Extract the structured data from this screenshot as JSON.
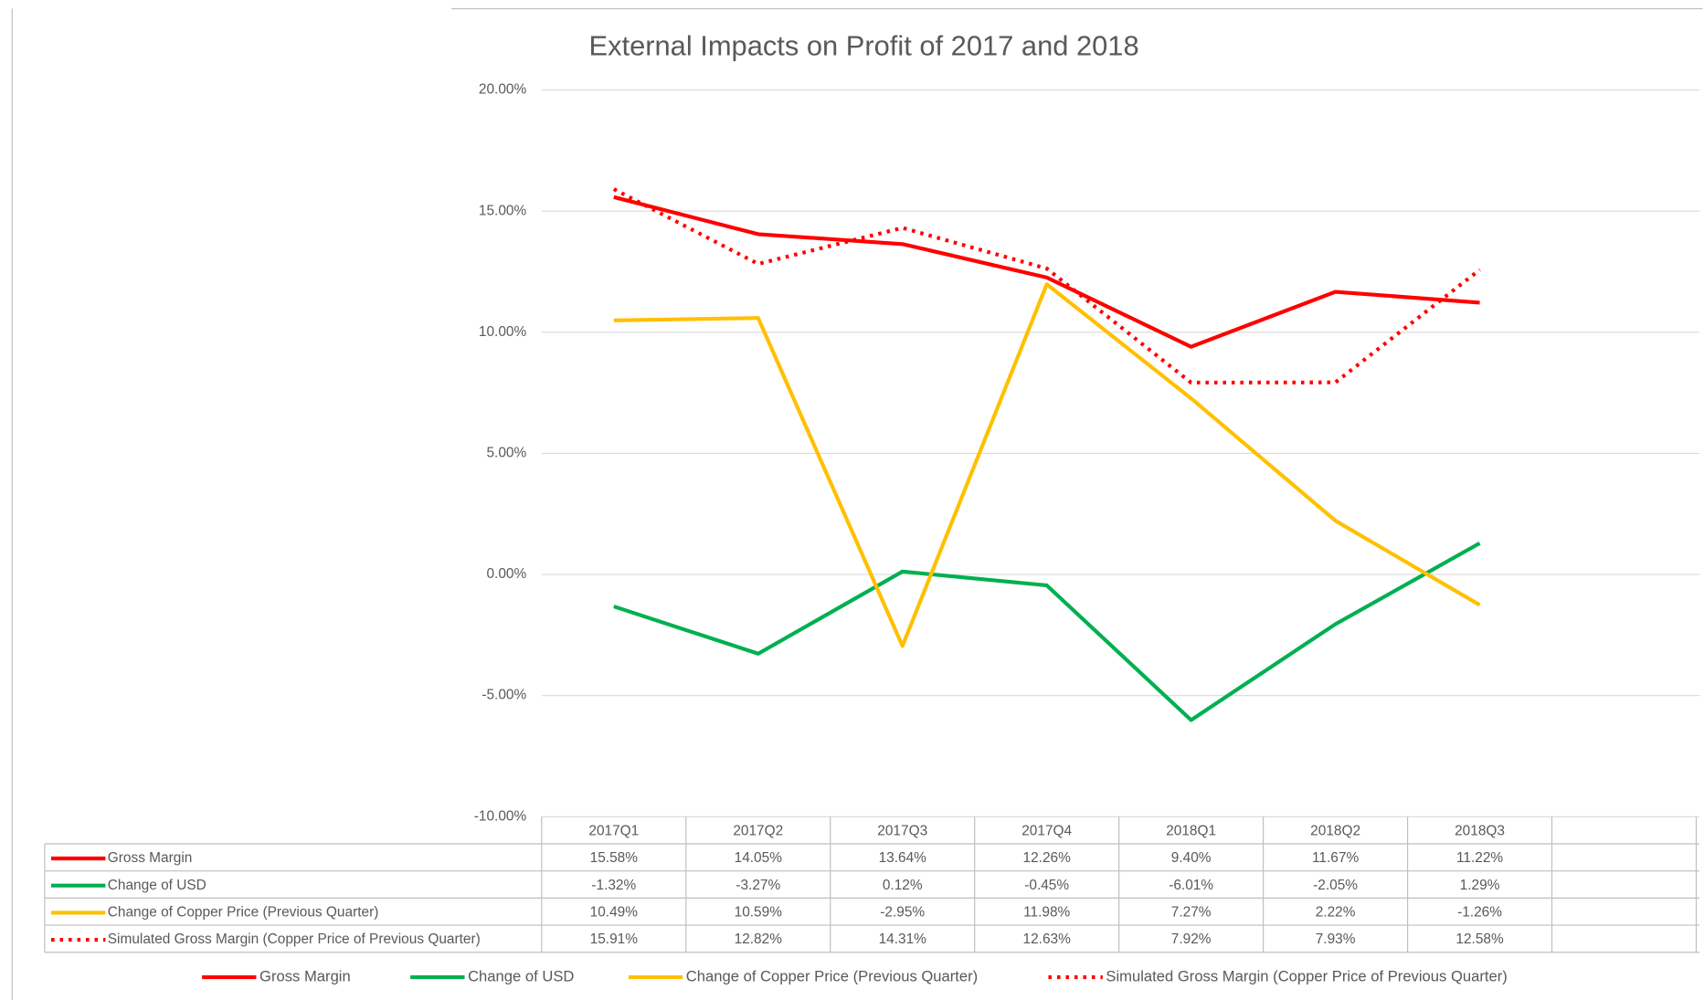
{
  "chart_data": {
    "type": "line",
    "title": "External Impacts on Profit of 2017 and 2018",
    "categories": [
      "2017Q1",
      "2017Q2",
      "2017Q3",
      "2017Q4",
      "2018Q1",
      "2018Q2",
      "2018Q3"
    ],
    "series": [
      {
        "name": "Gross Margin",
        "color": "#ff0000",
        "dash": "solid",
        "values": [
          15.58,
          14.05,
          13.64,
          12.26,
          9.4,
          11.67,
          11.22
        ],
        "value_labels": [
          "15.58%",
          "14.05%",
          "13.64%",
          "12.26%",
          "9.40%",
          "11.67%",
          "11.22%"
        ]
      },
      {
        "name": "Change of USD",
        "color": "#00b050",
        "dash": "solid",
        "values": [
          -1.32,
          -3.27,
          0.12,
          -0.45,
          -6.01,
          -2.05,
          1.29
        ],
        "value_labels": [
          "-1.32%",
          "-3.27%",
          "0.12%",
          "-0.45%",
          "-6.01%",
          "-2.05%",
          "1.29%"
        ]
      },
      {
        "name": "Change of Copper Price (Previous Quarter)",
        "color": "#ffc000",
        "dash": "solid",
        "values": [
          10.49,
          10.59,
          -2.95,
          11.98,
          7.27,
          2.22,
          -1.26
        ],
        "value_labels": [
          "10.49%",
          "10.59%",
          "-2.95%",
          "11.98%",
          "7.27%",
          "2.22%",
          "-1.26%"
        ]
      },
      {
        "name": "Simulated Gross Margin (Copper Price of Previous Quarter)",
        "color": "#ff0000",
        "dash": "dotted",
        "values": [
          15.91,
          12.82,
          14.31,
          12.63,
          7.92,
          7.93,
          12.58
        ],
        "value_labels": [
          "15.91%",
          "12.82%",
          "14.31%",
          "12.63%",
          "7.92%",
          "7.93%",
          "12.58%"
        ]
      }
    ],
    "ylim": [
      -10,
      20
    ],
    "yticks": [
      {
        "value": -10,
        "label": "-10.00%"
      },
      {
        "value": -5,
        "label": "-5.00%"
      },
      {
        "value": 0,
        "label": "0.00%"
      },
      {
        "value": 5,
        "label": "5.00%"
      },
      {
        "value": 10,
        "label": "10.00%"
      },
      {
        "value": 15,
        "label": "15.00%"
      },
      {
        "value": 20,
        "label": "20.00%"
      }
    ],
    "grid": true,
    "legend": "bottom"
  }
}
